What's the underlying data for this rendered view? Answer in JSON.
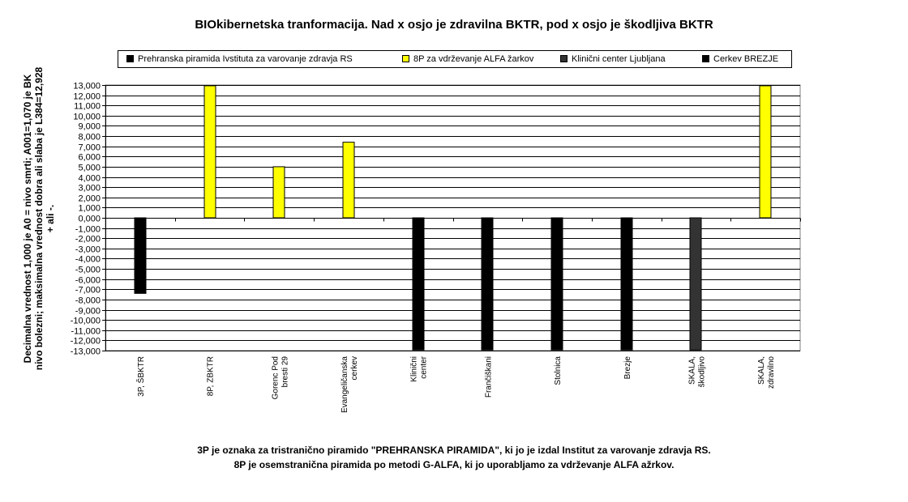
{
  "chart_data": {
    "type": "bar",
    "title": "BIOkibernetska tranformacija. Nad x osjo je zdravilna BKTR, pod x osjo je škodljiva BKTR",
    "ylabel": "Decimalna vrednost 1,000 je A0 = nivo smrti; A001=1,070 je BK nivo bolezni; maksimalna vrednost dobra ali slaba je L384=12,928 + ali -.",
    "xlabel": "",
    "ylim": [
      -13,
      13
    ],
    "y_ticks": [
      "13,000",
      "12,000",
      "11,000",
      "10,000",
      "9,000",
      "8,000",
      "7,000",
      "6,000",
      "5,000",
      "4,000",
      "3,000",
      "2,000",
      "1,000",
      "0,000",
      "-1,000",
      "-2,000",
      "-3,000",
      "-4,000",
      "-5,000",
      "-6,000",
      "-7,000",
      "-8,000",
      "-9,000",
      "-10,000",
      "-11,000",
      "-12,000",
      "-13,000"
    ],
    "categories": [
      "3P, ŠBKTR",
      "8P, ZBKTR",
      "Gorenc Pod bresti 29",
      "Evangeličanska cerkev",
      "Klinični center",
      "Frančiškani",
      "Stolnica",
      "Brezje",
      "SKALA, škodljivo",
      "SKALA, zdravilno"
    ],
    "series": [
      {
        "name": "Prehranska piramida Ivstituta za varovanje zdravja RS",
        "color": "#000000",
        "values": [
          -7.4,
          null,
          null,
          null,
          null,
          null,
          null,
          null,
          null,
          null
        ]
      },
      {
        "name": "8P za vdrževanje ALFA žarkov",
        "color": "#ffff00",
        "values": [
          null,
          12.928,
          5.0,
          7.4,
          null,
          null,
          null,
          null,
          null,
          12.928
        ]
      },
      {
        "name": "Klinični center Ljubljana",
        "color": "#333333",
        "values": [
          null,
          null,
          null,
          null,
          null,
          null,
          null,
          null,
          -12.928,
          null
        ]
      },
      {
        "name": "Cerkev BREZJE",
        "color": "#000000",
        "values": [
          null,
          null,
          null,
          null,
          -12.928,
          -12.928,
          -12.928,
          -12.928,
          null,
          null
        ]
      }
    ],
    "grid": true,
    "legend_position": "top"
  },
  "footnote": {
    "line1": "3P je oznaka za tristranično piramido \"PREHRANSKA PIRAMIDA\",  ki jo je izdal Institut za varovanje zdravja RS.",
    "line2": "8P je osemstranična piramida po metodi G-ALFA, ki jo uporabljamo za vdrževanje ALFA ažrkov."
  }
}
